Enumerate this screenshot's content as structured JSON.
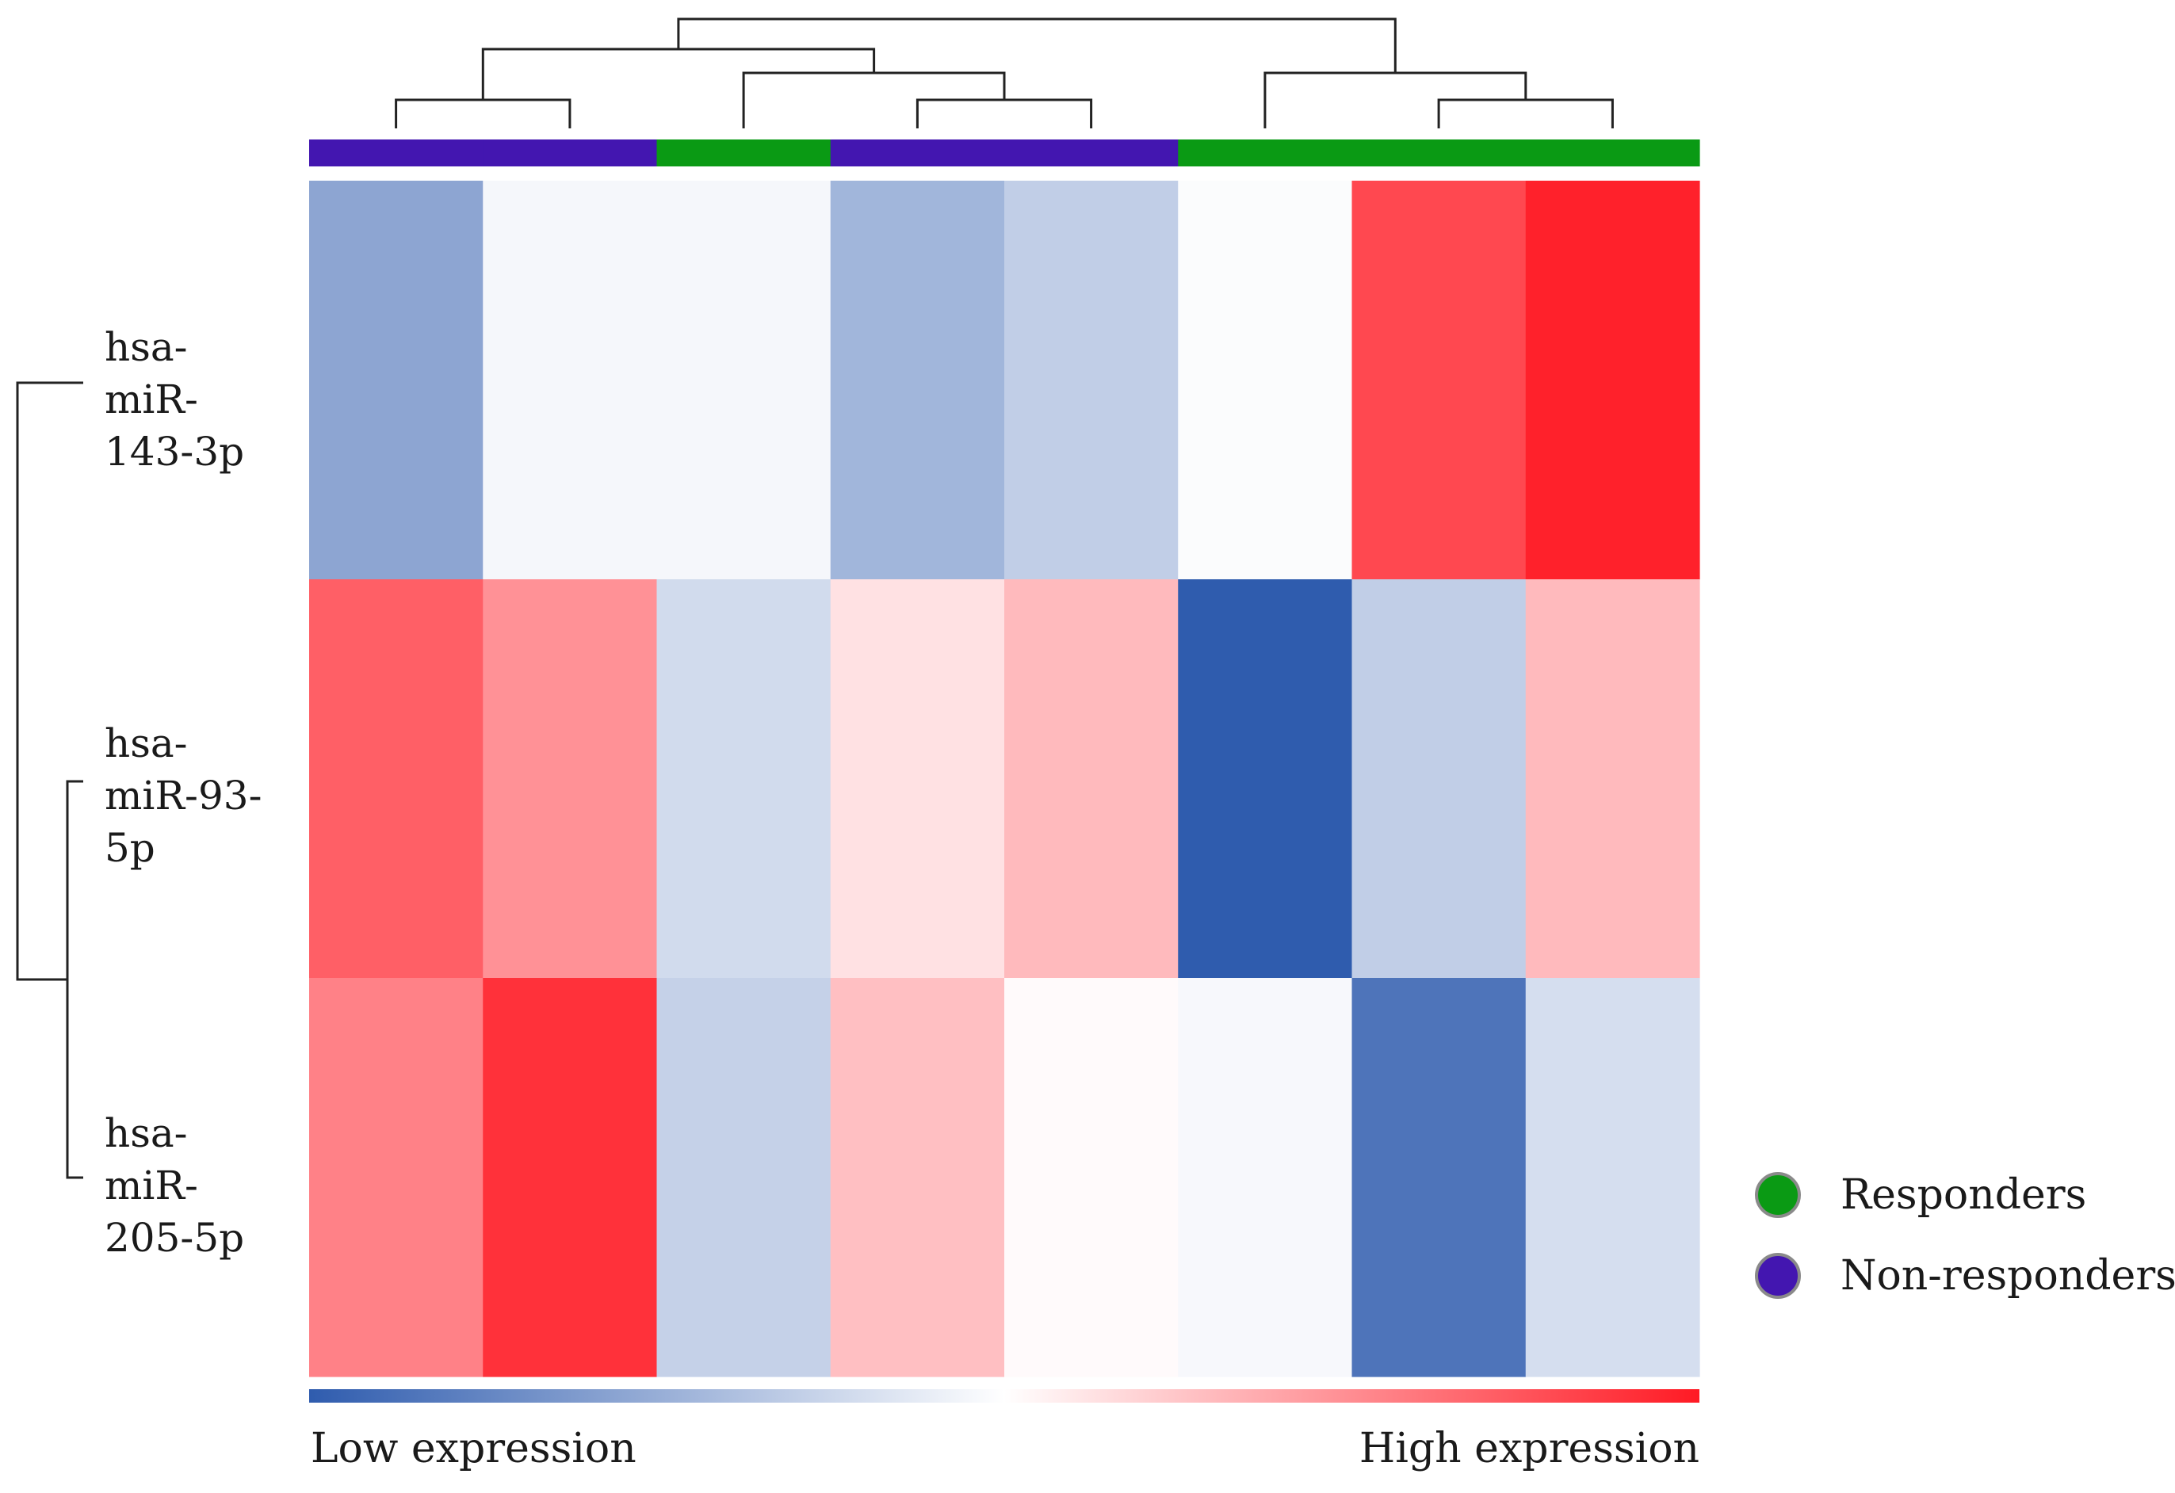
{
  "chart_data": {
    "type": "heatmap",
    "title": "",
    "rows": [
      {
        "label": [
          "hsa-",
          "miR-",
          "143-3p"
        ],
        "values": [
          -0.55,
          -0.05,
          -0.05,
          -0.45,
          -0.3,
          -0.02,
          0.8,
          0.97
        ]
      },
      {
        "label": [
          "hsa-",
          "miR-93-",
          "5p"
        ],
        "values": [
          0.7,
          0.48,
          -0.22,
          0.13,
          0.3,
          -1.0,
          -0.3,
          0.3
        ]
      },
      {
        "label": [
          "hsa-",
          "miR-",
          "205-5p"
        ],
        "values": [
          0.55,
          0.9,
          -0.28,
          0.28,
          0.02,
          -0.04,
          -0.85,
          -0.2
        ]
      }
    ],
    "column_groups": [
      "Non-responders",
      "Non-responders",
      "Responders",
      "Non-responders",
      "Non-responders",
      "Responders",
      "Responders",
      "Responders"
    ],
    "value_range": [
      -1,
      1
    ],
    "colorscale": {
      "low": "#2f5cae",
      "mid": "#ffffff",
      "high": "#ff1a24"
    },
    "color_bar": {
      "low_label": "Low expression",
      "high_label": "High expression"
    },
    "legend": {
      "position": "bottom-right",
      "items": [
        {
          "label": "Responders",
          "color": "#0a9a14"
        },
        {
          "label": "Non-responders",
          "color": "#4316b0"
        }
      ]
    },
    "column_dendrogram": {
      "merges": [
        [
          0,
          1
        ],
        [
          3,
          4
        ],
        [
          6,
          7
        ],
        [
          2,
          "c1"
        ],
        [
          5,
          "c2"
        ],
        [
          "c0",
          "c3"
        ],
        [
          "c5",
          "c4"
        ]
      ]
    },
    "row_dendrogram": {
      "merges": [
        [
          1,
          2
        ],
        [
          0,
          "c0"
        ]
      ]
    }
  }
}
